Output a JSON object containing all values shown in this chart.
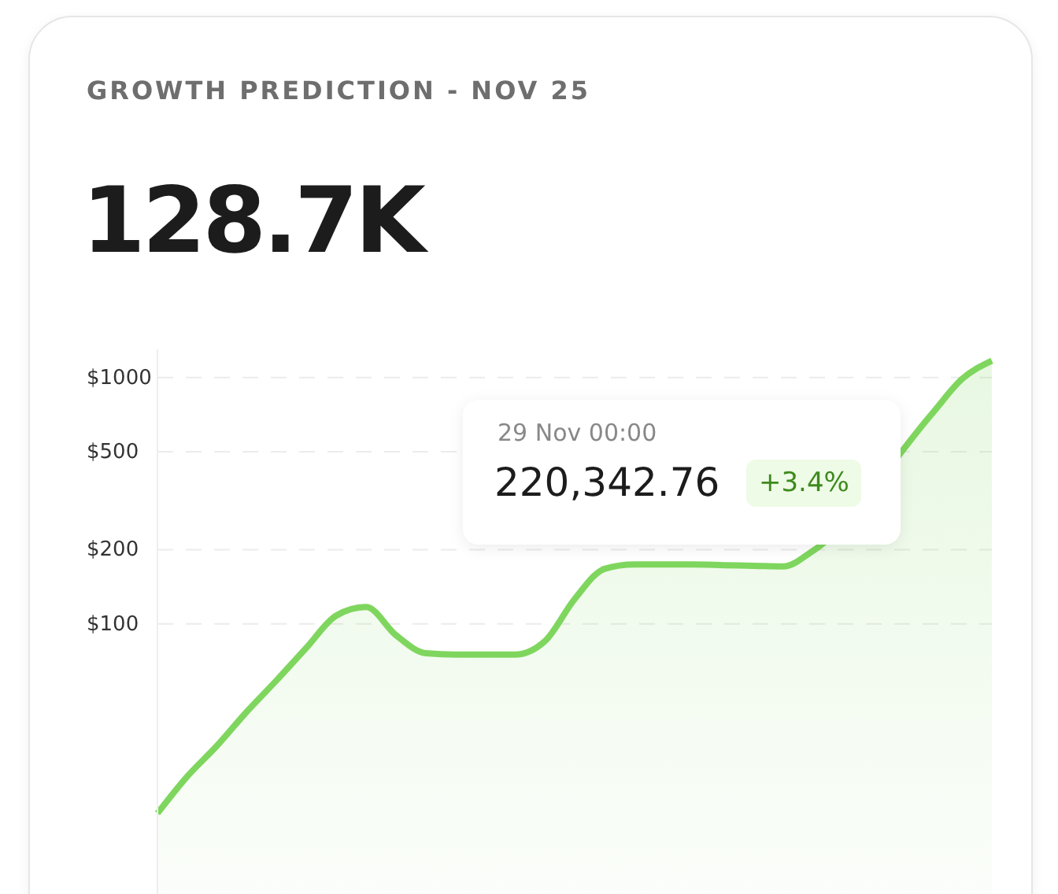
{
  "chart_data": {
    "type": "area",
    "title": "GROWTH PREDICTION - NOV 25",
    "subtitle": "128.7K",
    "annotations": [
      "29 Nov 00:00",
      "220,342.76",
      "+3.4%"
    ],
    "categories": [
      null,
      null,
      null,
      null,
      null,
      null,
      null,
      null,
      null,
      null,
      null,
      null,
      null,
      null,
      null,
      null,
      null,
      null,
      null,
      null,
      null,
      null,
      null,
      null,
      null,
      null,
      null,
      null,
      null
    ],
    "series": [
      {
        "color": "#7fd65e",
        "values": [
          17,
          24,
          32,
          44,
          59,
          80,
          108,
          117,
          90,
          76,
          75,
          75,
          75,
          85,
          126,
          167,
          174,
          174,
          174,
          173,
          172,
          171,
          198,
          null,
          null,
          null,
          715,
          986,
          1170
        ]
      }
    ],
    "log": "y",
    "ylim": [
      8,
      1300
    ],
    "yticks": [
      {
        "value": 100,
        "label": "$100"
      },
      {
        "value": 200,
        "label": "$200"
      },
      {
        "value": 500,
        "label": "$500"
      },
      {
        "value": 1000,
        "label": "$1000"
      }
    ],
    "grid": "y",
    "marker": "none",
    "line_style": "solid",
    "legend": false
  }
}
